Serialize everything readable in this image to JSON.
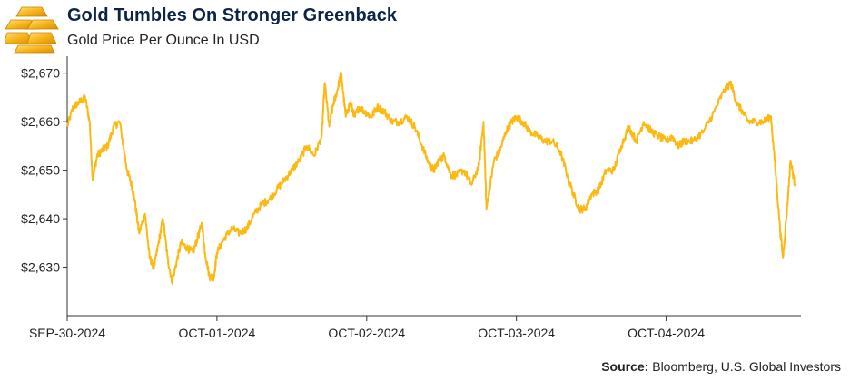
{
  "header": {
    "title": "Gold Tumbles On Stronger Greenback",
    "subtitle": "Gold Price Per Ounce In USD"
  },
  "source": {
    "label": "Source:",
    "text": "Bloomberg, U.S. Global Investors"
  },
  "colors": {
    "line": "#FDB913",
    "title": "#0B2447",
    "axis": "#333333",
    "logo_gold": "#F7B51A"
  },
  "icons": {
    "logo": "gold-bars-icon"
  },
  "chart_data": {
    "type": "line",
    "title": "Gold Tumbles On Stronger Greenback",
    "subtitle": "Gold Price Per Ounce In USD",
    "xlabel": "",
    "ylabel": "",
    "grid": false,
    "ylim": [
      2620,
      2672
    ],
    "xlim": [
      0,
      4.9
    ],
    "x_ticks": [
      {
        "x": 0,
        "label": "SEP-30-2024"
      },
      {
        "x": 1,
        "label": "OCT-01-2024"
      },
      {
        "x": 2,
        "label": "OCT-02-2024"
      },
      {
        "x": 3,
        "label": "OCT-03-2024"
      },
      {
        "x": 4,
        "label": "OCT-04-2024"
      }
    ],
    "y_ticks": [
      {
        "y": 2630,
        "label": "$2,630"
      },
      {
        "y": 2640,
        "label": "$2,640"
      },
      {
        "y": 2650,
        "label": "$2,650"
      },
      {
        "y": 2660,
        "label": "$2,660"
      },
      {
        "y": 2670,
        "label": "$2,670"
      }
    ],
    "series": [
      {
        "x": [
          0.0,
          0.04,
          0.08,
          0.12,
          0.15,
          0.17,
          0.2,
          0.23,
          0.27,
          0.31,
          0.35,
          0.4,
          0.43,
          0.45,
          0.48,
          0.52,
          0.55,
          0.58,
          0.61,
          0.64,
          0.67,
          0.7,
          0.73,
          0.76,
          0.8,
          0.84,
          0.87,
          0.9,
          0.92,
          0.95,
          0.98,
          1.0,
          1.05,
          1.1,
          1.15,
          1.2,
          1.25,
          1.3,
          1.35,
          1.4,
          1.45,
          1.5,
          1.55,
          1.6,
          1.65,
          1.7,
          1.72,
          1.75,
          1.78,
          1.8,
          1.83,
          1.86,
          1.89,
          1.92,
          1.95,
          1.99,
          2.03,
          2.07,
          2.12,
          2.17,
          2.22,
          2.27,
          2.32,
          2.37,
          2.42,
          2.45,
          2.48,
          2.52,
          2.56,
          2.6,
          2.65,
          2.7,
          2.75,
          2.78,
          2.8,
          2.82,
          2.85,
          2.89,
          2.93,
          2.97,
          3.0,
          3.04,
          3.09,
          3.14,
          3.19,
          3.24,
          3.29,
          3.34,
          3.38,
          3.42,
          3.46,
          3.5,
          3.55,
          3.6,
          3.65,
          3.7,
          3.75,
          3.8,
          3.85,
          3.9,
          3.95,
          4.0,
          4.04,
          4.08,
          4.12,
          4.18,
          4.25,
          4.32,
          4.38,
          4.43,
          4.47,
          4.51,
          4.55,
          4.6,
          4.65,
          4.7,
          4.73,
          4.76,
          4.78,
          4.81,
          4.83,
          4.86
        ],
        "y": [
          2659,
          2663,
          2664,
          2665,
          2660,
          2648,
          2653,
          2654,
          2655,
          2659,
          2660,
          2650,
          2647,
          2644,
          2637,
          2641,
          2632,
          2630,
          2635,
          2640,
          2632,
          2627,
          2631,
          2635,
          2634,
          2633,
          2636,
          2639,
          2633,
          2628,
          2628,
          2633,
          2636,
          2638,
          2637,
          2638,
          2641,
          2643,
          2644,
          2646,
          2648,
          2650,
          2652,
          2655,
          2653,
          2657,
          2668,
          2659,
          2664,
          2666,
          2670,
          2661,
          2664,
          2661,
          2663,
          2662,
          2661,
          2663,
          2662,
          2660,
          2660,
          2661,
          2659,
          2655,
          2651,
          2650,
          2652,
          2653,
          2649,
          2649,
          2650,
          2647,
          2651,
          2660,
          2642,
          2646,
          2652,
          2654,
          2658,
          2660,
          2661,
          2660,
          2658,
          2657,
          2656,
          2656,
          2654,
          2649,
          2645,
          2642,
          2642,
          2645,
          2646,
          2650,
          2650,
          2655,
          2659,
          2656,
          2660,
          2658,
          2657,
          2656,
          2657,
          2655,
          2656,
          2656,
          2658,
          2662,
          2666,
          2668,
          2664,
          2662,
          2660,
          2660,
          2660,
          2661,
          2650,
          2638,
          2632,
          2643,
          2652,
          2647
        ]
      }
    ]
  }
}
